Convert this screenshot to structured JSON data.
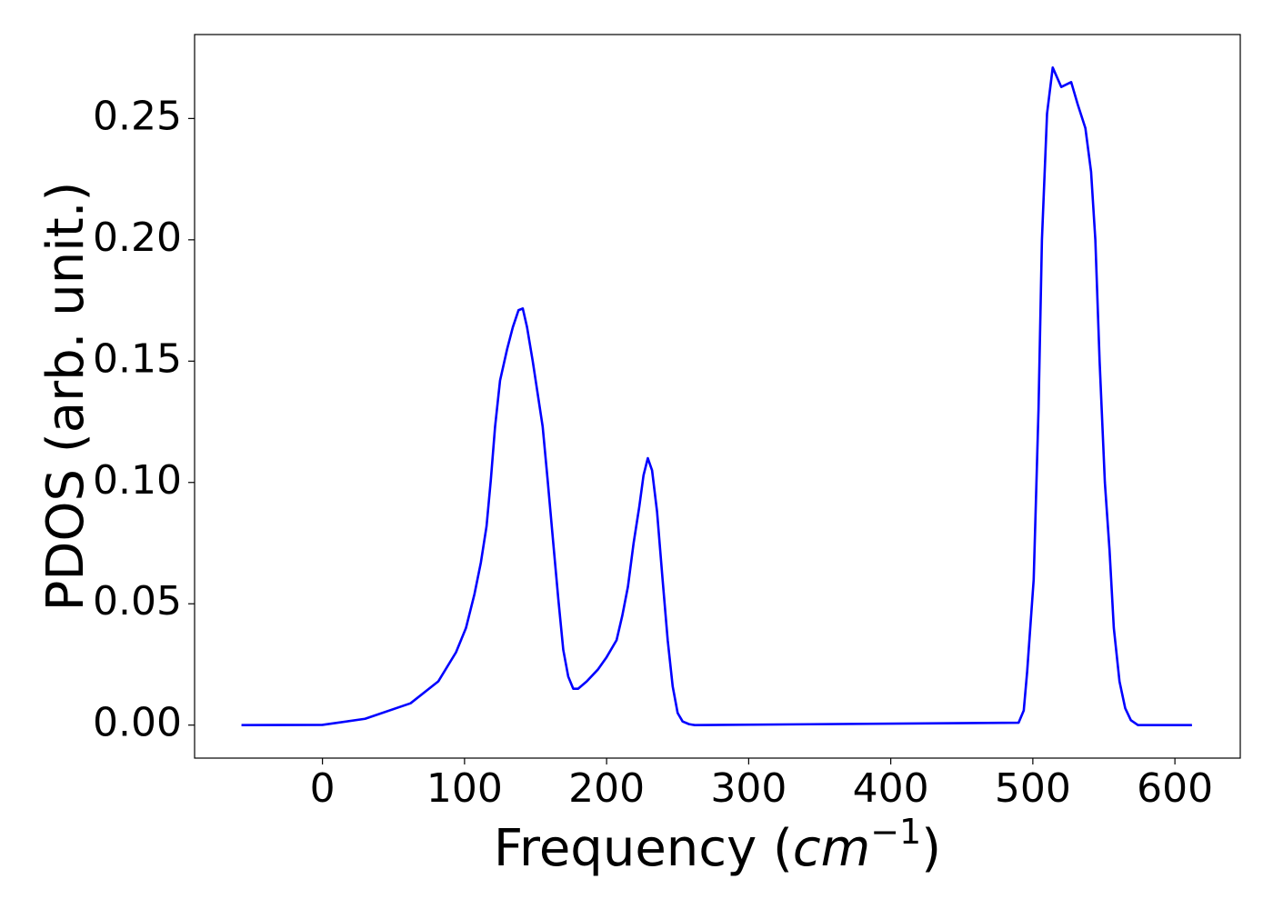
{
  "chart_data": {
    "type": "line",
    "x_label": {
      "prefix": "Frequency (",
      "unit": "cm",
      "exponent": "−1",
      "suffix": ")"
    },
    "y_label": "PDOS (arb. unit.)",
    "x": [
      -57,
      0,
      30,
      62,
      81.5,
      94,
      101,
      107,
      111.5,
      115.5,
      118.5,
      121.5,
      125,
      130,
      134,
      138,
      141,
      144,
      148,
      155,
      158.5,
      162,
      166,
      169.5,
      173,
      176.5,
      180,
      186,
      194,
      200,
      207,
      211,
      215,
      219,
      223,
      226,
      229,
      232,
      235.5,
      239.4,
      243,
      246.5,
      250,
      253.5,
      258,
      262,
      490,
      493.6,
      496,
      500.6,
      504,
      506.4,
      510,
      514,
      520,
      527,
      531.5,
      537,
      541,
      544,
      547,
      550.7,
      554,
      557,
      561,
      565,
      569,
      574,
      612
    ],
    "series": [
      {
        "name": "PDOS",
        "color": "#0000ff",
        "values": [
          0,
          0.0001,
          0.0026,
          0.009,
          0.018,
          0.03,
          0.04,
          0.054,
          0.067,
          0.082,
          0.101,
          0.123,
          0.142,
          0.155,
          0.164,
          0.171,
          0.1717,
          0.164,
          0.15,
          0.123,
          0.101,
          0.078,
          0.052,
          0.031,
          0.02,
          0.015,
          0.015,
          0.018,
          0.023,
          0.028,
          0.035,
          0.045,
          0.057,
          0.075,
          0.09,
          0.103,
          0.11,
          0.105,
          0.088,
          0.06,
          0.035,
          0.016,
          0.005,
          0.0015,
          0.0004,
          0,
          0.001,
          0.006,
          0.022,
          0.06,
          0.13,
          0.2,
          0.252,
          0.271,
          0.263,
          0.265,
          0.256,
          0.246,
          0.228,
          0.2,
          0.15,
          0.1,
          0.072,
          0.04,
          0.018,
          0.007,
          0.002,
          0,
          0
        ]
      }
    ],
    "xlim": [
      -90,
      646
    ],
    "ylim": [
      -0.0136,
      0.2846
    ],
    "xticks": [
      0,
      100,
      200,
      300,
      400,
      500,
      600
    ],
    "yticks": [
      {
        "value": 0,
        "label": "0.00"
      },
      {
        "value": 0.05,
        "label": "0.05"
      },
      {
        "value": 0.1,
        "label": "0.10"
      },
      {
        "value": 0.15,
        "label": "0.15"
      },
      {
        "value": 0.2,
        "label": "0.20"
      },
      {
        "value": 0.25,
        "label": "0.25"
      }
    ],
    "grid": false
  }
}
